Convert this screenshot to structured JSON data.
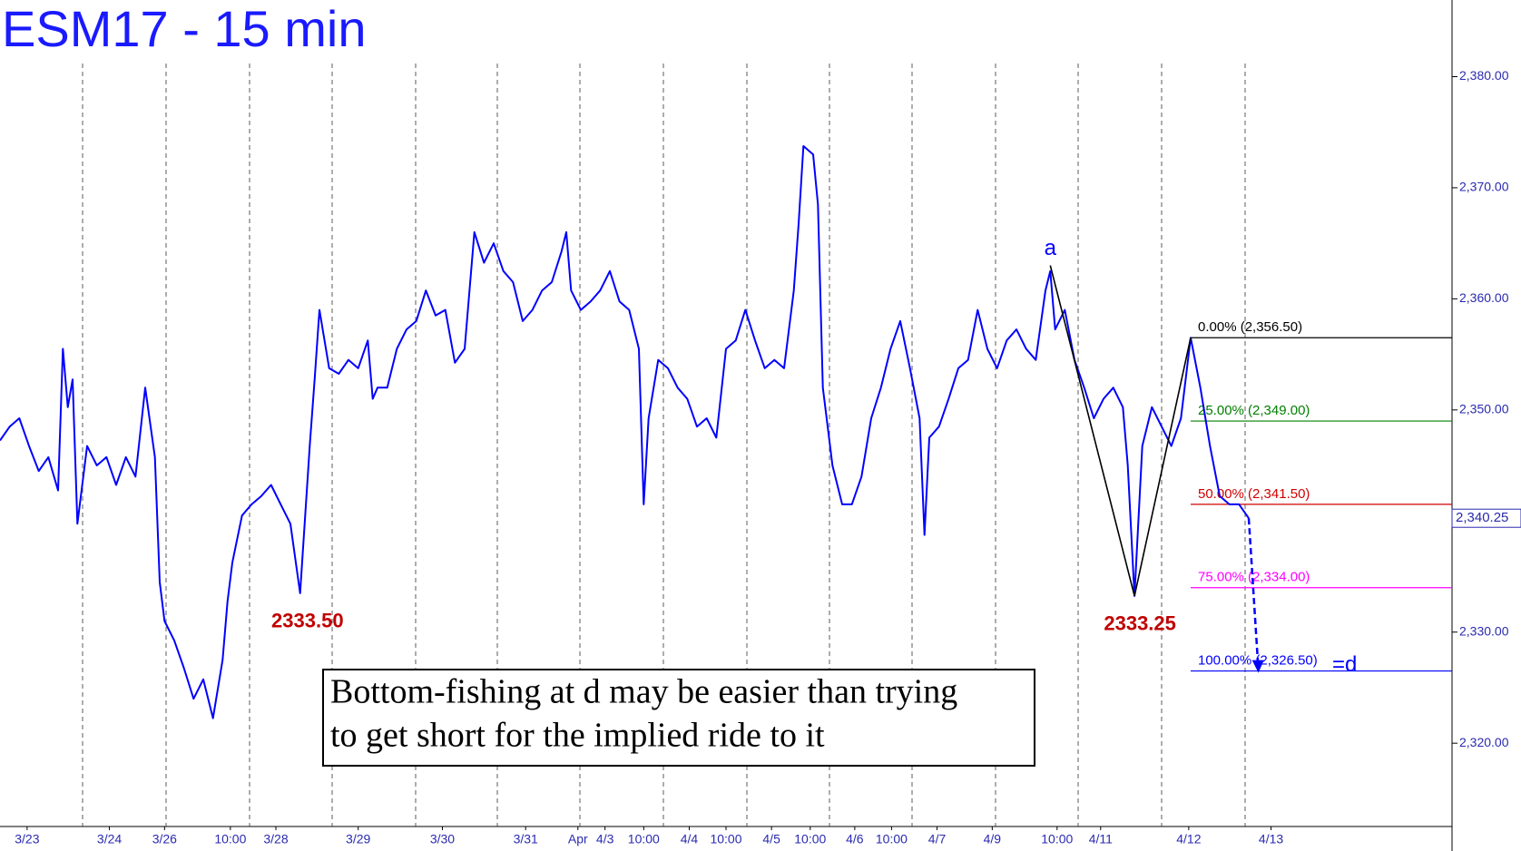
{
  "chart_data": {
    "type": "line",
    "title": "ESM17 - 15 min",
    "xlim": [
      0,
      150
    ],
    "ylim": [
      2312.5,
      2386.9
    ],
    "yticks": [
      {
        "value": 2320,
        "label": "2,320.00"
      },
      {
        "value": 2330,
        "label": "2,330.00"
      },
      {
        "value": 2340,
        "label": "2,340.00"
      },
      {
        "value": 2350,
        "label": "2,350.00"
      },
      {
        "value": 2360,
        "label": "2,360.00"
      },
      {
        "value": 2370,
        "label": "2,370.00"
      },
      {
        "value": 2380,
        "label": "2,380.00"
      }
    ],
    "xticks": [
      {
        "value": 2.8,
        "label": "3/23"
      },
      {
        "value": 11.3,
        "label": "3/24"
      },
      {
        "value": 17,
        "label": "3/26"
      },
      {
        "value": 23.8,
        "label": "10:00"
      },
      {
        "value": 28.5,
        "label": "3/28"
      },
      {
        "value": 37,
        "label": "3/29"
      },
      {
        "value": 45.7,
        "label": "3/30"
      },
      {
        "value": 54.3,
        "label": "3/31"
      },
      {
        "value": 59.7,
        "label": "Apr"
      },
      {
        "value": 62.5,
        "label": "4/3"
      },
      {
        "value": 66.5,
        "label": "10:00"
      },
      {
        "value": 71.2,
        "label": "4/4"
      },
      {
        "value": 75,
        "label": "10:00"
      },
      {
        "value": 79.7,
        "label": "4/5"
      },
      {
        "value": 83.7,
        "label": "10:00"
      },
      {
        "value": 88.3,
        "label": "4/6"
      },
      {
        "value": 92.1,
        "label": "10:00"
      },
      {
        "value": 96.8,
        "label": "4/7"
      },
      {
        "value": 102.5,
        "label": "4/9"
      },
      {
        "value": 109.2,
        "label": "10:00"
      },
      {
        "value": 113.7,
        "label": "4/11"
      },
      {
        "value": 122.8,
        "label": "4/12"
      },
      {
        "value": 131.3,
        "label": "4/13"
      }
    ],
    "series": [
      {
        "name": "ESM17",
        "color": "#0000ff",
        "x": [
          0,
          1,
          2,
          3,
          4,
          5,
          6,
          6.5,
          7,
          7.5,
          8,
          9,
          10,
          11,
          12,
          13,
          14,
          15,
          16,
          16.5,
          17,
          18,
          19,
          20,
          21,
          22,
          23,
          23.5,
          24,
          25,
          26,
          27,
          28,
          29,
          30,
          31,
          32,
          32.5,
          33,
          34,
          35,
          36,
          37,
          38,
          38.5,
          39,
          40,
          41,
          42,
          43,
          44,
          45,
          46,
          47,
          48,
          49,
          50,
          51,
          52,
          53,
          54,
          55,
          56,
          57,
          58,
          58.5,
          59,
          60,
          61,
          62,
          63,
          64,
          65,
          66,
          66.5,
          67,
          68,
          69,
          70,
          71,
          72,
          73,
          74,
          75,
          76,
          77,
          78,
          79,
          80,
          81,
          82,
          82.5,
          83,
          84,
          84.5,
          85,
          86,
          87,
          88,
          89,
          90,
          91,
          92,
          93,
          94,
          95,
          95.5,
          96,
          97,
          98,
          99,
          100,
          101,
          102,
          103,
          104,
          105,
          106,
          107,
          108,
          108.5,
          109,
          110,
          111,
          112,
          113,
          114,
          115,
          116,
          116.5,
          117.2,
          118,
          119,
          120,
          121,
          122,
          123,
          124,
          125,
          126,
          127,
          128,
          129
        ],
        "values": [
          2347.25,
          2348.5,
          2349.25,
          2346.75,
          2344.5,
          2345.75,
          2342.75,
          2355.5,
          2350.25,
          2352.75,
          2339.75,
          2346.75,
          2345,
          2345.75,
          2343.25,
          2345.75,
          2344,
          2352,
          2345.75,
          2334.5,
          2331,
          2329.25,
          2326.75,
          2324,
          2325.75,
          2322.25,
          2327.5,
          2332.75,
          2336.25,
          2340.5,
          2341.5,
          2342.25,
          2343.25,
          2341.5,
          2339.75,
          2333.5,
          2346.75,
          2352.75,
          2359,
          2353.75,
          2353.25,
          2354.5,
          2353.75,
          2356.25,
          2351,
          2352,
          2352,
          2355.5,
          2357.25,
          2358,
          2360.75,
          2358.5,
          2359,
          2354.25,
          2355.5,
          2366,
          2363.25,
          2365,
          2362.5,
          2361.5,
          2358,
          2359,
          2360.75,
          2361.5,
          2364.25,
          2366,
          2360.75,
          2359,
          2359.75,
          2360.75,
          2362.5,
          2359.75,
          2359,
          2355.5,
          2341.5,
          2349.25,
          2354.5,
          2353.75,
          2352,
          2351,
          2348.5,
          2349.25,
          2347.5,
          2355.5,
          2356.25,
          2359,
          2356.25,
          2353.75,
          2354.5,
          2353.75,
          2360.75,
          2366.75,
          2373.75,
          2373,
          2368.5,
          2352,
          2345,
          2341.5,
          2341.5,
          2344,
          2349.25,
          2352,
          2355.5,
          2358,
          2353.75,
          2349.25,
          2338.75,
          2347.5,
          2348.5,
          2351,
          2353.75,
          2354.5,
          2359,
          2355.5,
          2353.75,
          2356.25,
          2357.25,
          2355.5,
          2354.5,
          2360.75,
          2362.5,
          2357.25,
          2359,
          2354.5,
          2352,
          2349.25,
          2351,
          2352,
          2350.25,
          2345,
          2333.25,
          2346.75,
          2350.25,
          2348.5,
          2346.75,
          2349.25,
          2356.5,
          2352,
          2346.75,
          2342.25,
          2341.5,
          2341.5,
          2340.25
        ]
      }
    ],
    "pattern": {
      "x": [
        108.5,
        117.2,
        123
      ],
      "values": [
        2363,
        2333.25,
        2356.5
      ]
    },
    "projection": {
      "x": [
        129,
        130
      ],
      "values": [
        2340.25,
        2326.5
      ]
    },
    "levels": [
      {
        "label": "0.00% (2,356.50)",
        "value": 2356.5,
        "color": "#000000"
      },
      {
        "label": "25.00% (2,349.00)",
        "value": 2349,
        "color": "#008000"
      },
      {
        "label": "50.00% (2,341.50)",
        "value": 2341.5,
        "color": "#d00000"
      },
      {
        "label": "75.00% (2,334.00)",
        "value": 2334,
        "color": "#ff00ff"
      },
      {
        "label": "100.00% (2,326.50)",
        "value": 2326.5,
        "color": "#0000ff"
      }
    ],
    "target_label": "=d",
    "last_price": {
      "value": 2340.25,
      "label": "2,340.25"
    },
    "annotations": [
      {
        "text": "2333.50",
        "x": 31.2,
        "y": 2333.5,
        "color": "#c00000"
      },
      {
        "text": "a",
        "x": 108.5,
        "y": 2363,
        "color": "#0000ff"
      },
      {
        "text": "2333.25",
        "x": 117.2,
        "y": 2333.25,
        "color": "#c00000"
      }
    ],
    "note": [
      "Bottom-fishing at d may be easier than trying",
      "to get short for the implied ride to it"
    ]
  }
}
